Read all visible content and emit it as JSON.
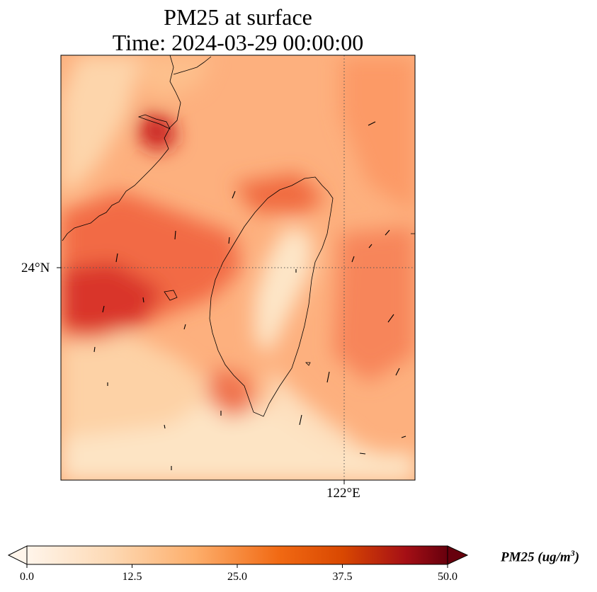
{
  "title_line1": "PM25 at surface",
  "title_line2": "Time: 2024-03-29 00:00:00",
  "latitude_label": "24°N",
  "longitude_label": "122°E",
  "colorbar": {
    "label_base": "PM25 (ug/m",
    "label_exp": "3",
    "label_close": ")",
    "min": 0.0,
    "max": 50.0,
    "ticks": [
      "0.0",
      "12.5",
      "25.0",
      "37.5",
      "50.0"
    ],
    "colors": [
      "#fff5eb",
      "#fdd9b4",
      "#fdae6b",
      "#f16913",
      "#d94801",
      "#a50f15",
      "#67000d"
    ]
  },
  "gridlines": "dotted"
}
